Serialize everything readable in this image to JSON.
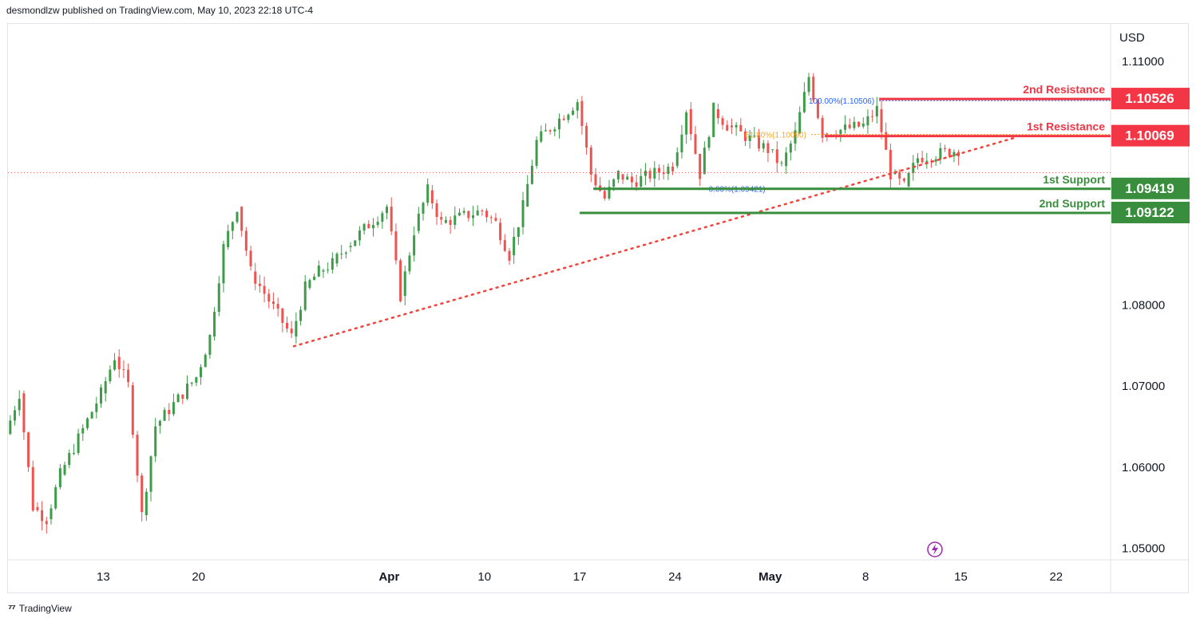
{
  "header": {
    "published": "desmondlzw published on TradingView.com, May 10, 2023 22:18 UTC-4"
  },
  "footer": {
    "brand": "TradingView"
  },
  "colors": {
    "up": "#26a69a",
    "upCandle": "#3d9b49",
    "down": "#ef5350",
    "resistance": "#f23645",
    "support": "#388e3c",
    "trendline": "#f0433a",
    "fibTop": "#2962ff",
    "fib618": "#f5a623",
    "axisText": "#131722",
    "grid": "#e0e3eb"
  },
  "chart_data": {
    "type": "candlestick",
    "symbol_currency": "USD",
    "y_ticks": [
      "1.11000",
      "1.08000",
      "1.07000",
      "1.06000",
      "1.05000"
    ],
    "y_ticks_values": [
      1.11,
      1.08,
      1.07,
      1.06,
      1.05
    ],
    "ylim": [
      1.0485,
      1.1145
    ],
    "x_ticks": [
      {
        "label": "13",
        "date": "2023-03-13"
      },
      {
        "label": "20",
        "date": "2023-03-20"
      },
      {
        "label": "Apr",
        "date": "2023-04-03"
      },
      {
        "label": "10",
        "date": "2023-04-10"
      },
      {
        "label": "17",
        "date": "2023-04-17"
      },
      {
        "label": "24",
        "date": "2023-04-24"
      },
      {
        "label": "May",
        "date": "2023-05-01"
      },
      {
        "label": "8",
        "date": "2023-05-08"
      },
      {
        "label": "15",
        "date": "2023-05-15"
      },
      {
        "label": "22",
        "date": "2023-05-22"
      }
    ],
    "xlim": [
      "2023-03-06",
      "2023-05-26"
    ],
    "path_points": [
      [
        "2023-03-06",
        1.064
      ],
      [
        "2023-03-07",
        1.069
      ],
      [
        "2023-03-08",
        1.055
      ],
      [
        "2023-03-09",
        1.0535
      ],
      [
        "2023-03-10",
        1.059
      ],
      [
        "2023-03-13",
        1.069
      ],
      [
        "2023-03-14",
        1.0735
      ],
      [
        "2023-03-15",
        1.07
      ],
      [
        "2023-03-16",
        1.054
      ],
      [
        "2023-03-17",
        1.065
      ],
      [
        "2023-03-20",
        1.071
      ],
      [
        "2023-03-21",
        1.076
      ],
      [
        "2023-03-22",
        1.087
      ],
      [
        "2023-03-23",
        1.092
      ],
      [
        "2023-03-24",
        1.084
      ],
      [
        "2023-03-27",
        1.076
      ],
      [
        "2023-03-28",
        1.082
      ],
      [
        "2023-03-29",
        1.084
      ],
      [
        "2023-03-30",
        1.085
      ],
      [
        "2023-03-31",
        1.087
      ],
      [
        "2023-04-03",
        1.092
      ],
      [
        "2023-04-04",
        1.081
      ],
      [
        "2023-04-05",
        1.089
      ],
      [
        "2023-04-06",
        1.094
      ],
      [
        "2023-04-07",
        1.09
      ],
      [
        "2023-04-10",
        1.0915
      ],
      [
        "2023-04-11",
        1.09
      ],
      [
        "2023-04-12",
        1.086
      ],
      [
        "2023-04-13",
        1.092
      ],
      [
        "2023-04-14",
        1.1
      ],
      [
        "2023-04-17",
        1.105
      ],
      [
        "2023-04-18",
        1.096
      ],
      [
        "2023-04-19",
        1.093
      ],
      [
        "2023-04-20",
        1.096
      ],
      [
        "2023-04-21",
        1.095
      ],
      [
        "2023-04-24",
        1.097
      ],
      [
        "2023-04-25",
        1.104
      ],
      [
        "2023-04-26",
        1.096
      ],
      [
        "2023-04-27",
        1.104
      ],
      [
        "2023-04-28",
        1.102
      ],
      [
        "2023-05-01",
        1.099
      ],
      [
        "2023-05-02",
        1.097
      ],
      [
        "2023-05-03",
        1.101
      ],
      [
        "2023-05-04",
        1.108
      ],
      [
        "2023-05-05",
        1.101
      ],
      [
        "2023-05-08",
        1.102
      ],
      [
        "2023-05-09",
        1.104
      ],
      [
        "2023-05-10",
        1.096
      ],
      [
        "2023-05-11",
        1.0945
      ],
      [
        "2023-05-12",
        1.098
      ],
      [
        "2023-05-15",
        1.099
      ]
    ],
    "levels": [
      {
        "label": "2nd Resistance",
        "value": "1.10526",
        "y": 1.10526,
        "kind": "resistance"
      },
      {
        "label": "1st Resistance",
        "value": "1.10069",
        "y": 1.10069,
        "kind": "resistance"
      },
      {
        "label": "1st Support",
        "value": "1.09419",
        "y": 1.09419,
        "kind": "support"
      },
      {
        "label": "2nd Support",
        "value": "1.09122",
        "y": 1.09122,
        "kind": "support"
      }
    ],
    "fib": [
      {
        "label": "100.00%(1.10506)",
        "y": 1.10506
      },
      {
        "label": "61.80%(1.10090)",
        "y": 1.1009
      },
      {
        "label": "0.00%(1.09421)",
        "y": 1.09421
      }
    ],
    "trendline": {
      "from": [
        "2023-03-27",
        1.0748
      ],
      "to": [
        "2023-05-19",
        1.1005
      ]
    },
    "current_price_line": 1.0962
  }
}
